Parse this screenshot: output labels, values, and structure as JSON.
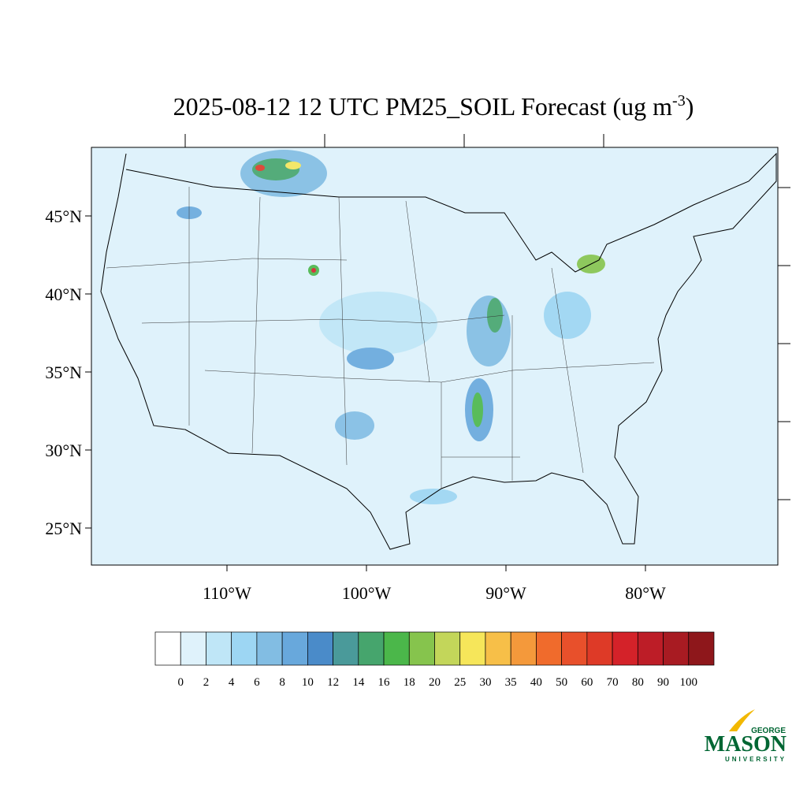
{
  "title": {
    "text": "2025-08-12 12 UTC PM25_SOIL Forecast (ug m",
    "superscript": "-3",
    "closing": ")"
  },
  "map": {
    "lat_ticks": [
      {
        "value": 45,
        "label": "45°N"
      },
      {
        "value": 40,
        "label": "40°N"
      },
      {
        "value": 35,
        "label": "35°N"
      },
      {
        "value": 30,
        "label": "30°N"
      },
      {
        "value": 25,
        "label": "25°N"
      }
    ],
    "lon_ticks": [
      {
        "value": -110,
        "label": "110°W"
      },
      {
        "value": -100,
        "label": "100°W"
      },
      {
        "value": -90,
        "label": "90°W"
      },
      {
        "value": -80,
        "label": "80°W"
      }
    ]
  },
  "colorbar": {
    "levels": [
      0,
      2,
      4,
      6,
      8,
      10,
      12,
      14,
      16,
      18,
      20,
      25,
      30,
      35,
      40,
      50,
      60,
      70,
      80,
      90,
      100
    ],
    "colors": [
      "#ffffff",
      "#dff2fb",
      "#bfe6f7",
      "#9dd6f3",
      "#82bde3",
      "#68a8dc",
      "#4a8bc9",
      "#4a9a9a",
      "#46a56d",
      "#4bb74a",
      "#86c44d",
      "#c3d65a",
      "#f6e65a",
      "#f7bf48",
      "#f4993b",
      "#f06b2c",
      "#e8502b",
      "#de3a27",
      "#d42229",
      "#bd1d27",
      "#a81b22",
      "#8e171b"
    ]
  },
  "logo": {
    "top": "GEORGE",
    "main": "MASON",
    "bottom": "UNIVERSITY"
  }
}
